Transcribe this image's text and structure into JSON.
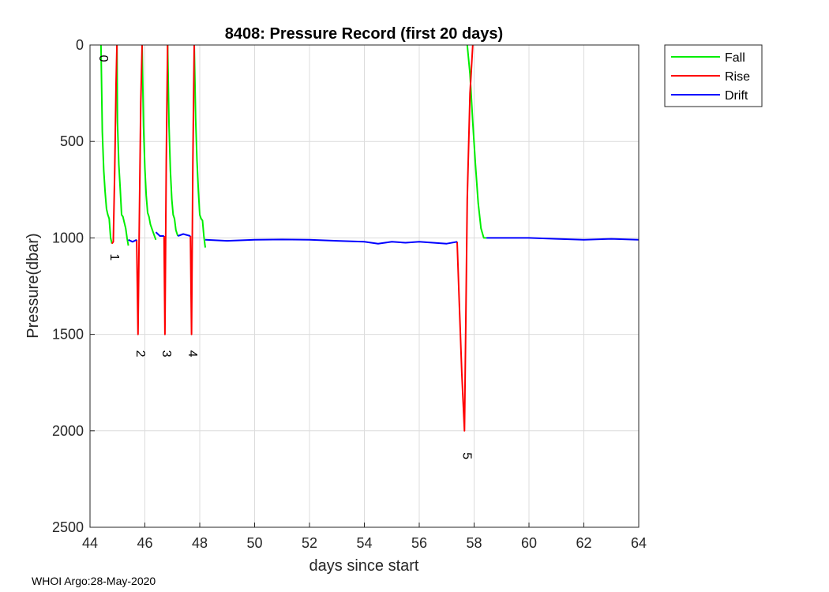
{
  "chart_data": {
    "type": "line",
    "title": "8408: Pressure Record (first 20 days)",
    "xlabel": "days since start",
    "ylabel": "Pressure(dbar)",
    "xlim": [
      44,
      64
    ],
    "ylim": [
      0,
      2500
    ],
    "y_reversed": true,
    "xticks": [
      44,
      46,
      48,
      50,
      52,
      54,
      56,
      58,
      60,
      62,
      64
    ],
    "yticks": [
      0,
      500,
      1000,
      1500,
      2000,
      2500
    ],
    "grid": true,
    "legend_position": "outside-top-right",
    "colors": {
      "Fall": "#00ee00",
      "Rise": "#ff0000",
      "Drift": "#0000ff"
    },
    "series": [
      {
        "name": "Fall",
        "segments": [
          {
            "x": [
              44.4,
              44.45,
              44.5,
              44.55,
              44.6,
              44.65,
              44.7,
              44.75,
              44.8
            ],
            "y": [
              0,
              450,
              650,
              760,
              850,
              880,
              900,
              1000,
              1030
            ]
          },
          {
            "x": [
              44.98,
              45.0,
              45.05,
              45.1,
              45.15,
              45.2,
              45.25,
              45.3,
              45.35,
              45.4
            ],
            "y": [
              0,
              400,
              620,
              740,
              880,
              890,
              920,
              950,
              1000,
              1040
            ]
          },
          {
            "x": [
              45.9,
              45.95,
              46.0,
              46.05,
              46.1,
              46.15,
              46.2,
              46.3,
              46.4
            ],
            "y": [
              0,
              420,
              640,
              780,
              870,
              890,
              930,
              970,
              1010
            ]
          },
          {
            "x": [
              46.83,
              46.88,
              46.93,
              46.98,
              47.03,
              47.08,
              47.13,
              47.2
            ],
            "y": [
              0,
              420,
              650,
              800,
              880,
              900,
              960,
              990
            ]
          },
          {
            "x": [
              47.8,
              47.85,
              47.9,
              47.95,
              48.0,
              48.05,
              48.1,
              48.15,
              48.2
            ],
            "y": [
              0,
              380,
              600,
              760,
              880,
              900,
              910,
              990,
              1050
            ]
          },
          {
            "x": [
              57.75,
              57.85,
              57.95,
              58.05,
              58.15,
              58.25,
              58.35,
              58.45
            ],
            "y": [
              -50,
              150,
              400,
              620,
              820,
              950,
              1000,
              1000
            ]
          }
        ]
      },
      {
        "name": "Rise",
        "segments": [
          {
            "x": [
              44.8,
              44.85,
              44.9,
              44.95,
              44.98
            ],
            "y": [
              1030,
              1020,
              650,
              200,
              0
            ]
          },
          {
            "x": [
              45.7,
              45.75,
              45.8,
              45.85,
              45.9
            ],
            "y": [
              1010,
              1500,
              900,
              300,
              0
            ]
          },
          {
            "x": [
              46.7,
              46.73,
              46.78,
              46.83
            ],
            "y": [
              990,
              1500,
              600,
              0
            ]
          },
          {
            "x": [
              47.66,
              47.7,
              47.75,
              47.8
            ],
            "y": [
              990,
              1500,
              600,
              0
            ]
          },
          {
            "x": [
              57.38,
              57.45,
              57.55,
              57.6,
              57.65,
              57.7,
              57.75,
              57.85,
              57.95
            ],
            "y": [
              1020,
              1300,
              1700,
              1850,
              2000,
              1400,
              800,
              250,
              -50
            ]
          }
        ]
      },
      {
        "name": "Drift",
        "segments": [
          {
            "x": [
              45.4,
              45.55,
              45.7
            ],
            "y": [
              1010,
              1020,
              1010
            ]
          },
          {
            "x": [
              46.4,
              46.55,
              46.7
            ],
            "y": [
              970,
              990,
              990
            ]
          },
          {
            "x": [
              47.2,
              47.4,
              47.66
            ],
            "y": [
              990,
              980,
              990
            ]
          },
          {
            "x": [
              48.2,
              49,
              50,
              51,
              52,
              53,
              54,
              54.5,
              55,
              55.5,
              56,
              56.5,
              57,
              57.38
            ],
            "y": [
              1010,
              1015,
              1010,
              1008,
              1010,
              1015,
              1020,
              1030,
              1020,
              1025,
              1020,
              1025,
              1030,
              1020
            ]
          },
          {
            "x": [
              58.45,
              59,
              60,
              61,
              62,
              63,
              64
            ],
            "y": [
              1000,
              1000,
              1000,
              1005,
              1010,
              1005,
              1010
            ]
          }
        ]
      }
    ],
    "annotations": [
      {
        "text": "0",
        "x": 44.35,
        "y": 70
      },
      {
        "text": "1",
        "x": 44.75,
        "y": 1100
      },
      {
        "text": "2",
        "x": 45.7,
        "y": 1600
      },
      {
        "text": "3",
        "x": 46.65,
        "y": 1600
      },
      {
        "text": "4",
        "x": 47.6,
        "y": 1600
      },
      {
        "text": "5",
        "x": 57.6,
        "y": 2130
      }
    ],
    "legend": [
      "Fall",
      "Rise",
      "Drift"
    ]
  },
  "footer": "WHOI Argo:28-May-2020"
}
